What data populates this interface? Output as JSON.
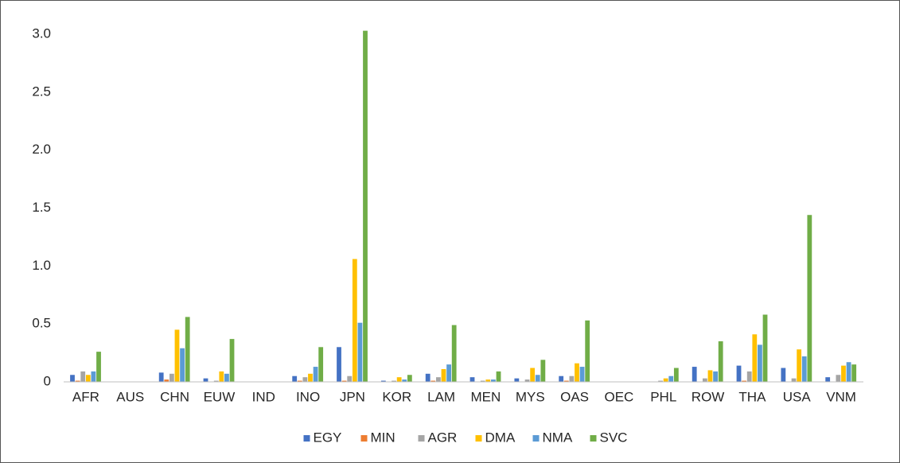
{
  "chart_data": {
    "type": "bar",
    "categories": [
      "AFR",
      "AUS",
      "CHN",
      "EUW",
      "IND",
      "INO",
      "JPN",
      "KOR",
      "LAM",
      "MEN",
      "MYS",
      "OAS",
      "OEC",
      "PHL",
      "ROW",
      "THA",
      "USA",
      "VNM"
    ],
    "series": [
      {
        "name": "EGY",
        "color": "#4472c4",
        "values": [
          0.06,
          0,
          0.08,
          0.03,
          0,
          0.05,
          0.3,
          0.01,
          0.07,
          0.04,
          0.03,
          0.05,
          0,
          0,
          0.13,
          0.14,
          0.12,
          0.04
        ]
      },
      {
        "name": "MIN",
        "color": "#ed7d31",
        "values": [
          0.01,
          0,
          0.02,
          0,
          0,
          0.01,
          0.01,
          0,
          0.01,
          0,
          0,
          0.01,
          0,
          0,
          0,
          0.01,
          0,
          0
        ]
      },
      {
        "name": "AGR",
        "color": "#a5a5a5",
        "values": [
          0.09,
          0,
          0.07,
          0.01,
          0,
          0.04,
          0.05,
          0.01,
          0.04,
          0.01,
          0.02,
          0.05,
          0,
          0.01,
          0.03,
          0.09,
          0.03,
          0.06
        ]
      },
      {
        "name": "DMA",
        "color": "#ffc000",
        "values": [
          0.06,
          0,
          0.45,
          0.09,
          0,
          0.07,
          1.06,
          0.04,
          0.11,
          0.02,
          0.12,
          0.16,
          0,
          0.03,
          0.1,
          0.41,
          0.28,
          0.14
        ]
      },
      {
        "name": "NMA",
        "color": "#5b9bd5",
        "values": [
          0.09,
          0,
          0.29,
          0.07,
          0,
          0.13,
          0.51,
          0.02,
          0.15,
          0.02,
          0.06,
          0.13,
          0,
          0.05,
          0.09,
          0.32,
          0.22,
          0.17
        ]
      },
      {
        "name": "SVC",
        "color": "#70ad47",
        "values": [
          0.26,
          0,
          0.56,
          0.37,
          0,
          0.3,
          3.03,
          0.06,
          0.49,
          0.09,
          0.19,
          0.53,
          0,
          0.12,
          0.35,
          0.58,
          1.44,
          0.15
        ]
      }
    ],
    "ylim": [
      0,
      3.0
    ],
    "yticks": [
      0,
      0.5,
      {
        "value": 1,
        "label": "1.0"
      },
      1.5,
      {
        "value": 2,
        "label": "2.0"
      },
      2.5,
      {
        "value": 3,
        "label": "3.0"
      }
    ],
    "legend": "bottom"
  }
}
